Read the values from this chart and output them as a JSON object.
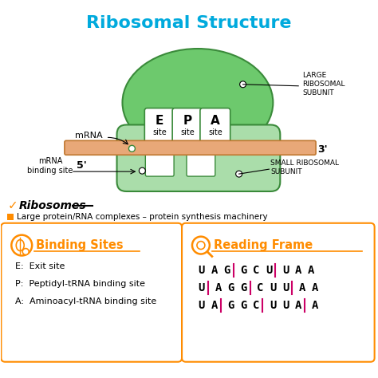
{
  "title": "Ribosomal Structure",
  "title_color": "#00AADD",
  "title_fontsize": 16,
  "bg_color": "#FFFFFF",
  "large_subunit_color": "#6DC96D",
  "large_subunit_border": "#3A8A3A",
  "small_subunit_color": "#AADDAA",
  "small_subunit_border": "#3A8A3A",
  "mrna_color": "#E8A878",
  "mrna_border": "#C07830",
  "site_border": "#3A8A3A",
  "site_labels": [
    "E",
    "P",
    "A"
  ],
  "orange_color": "#FF8C00",
  "pink_color": "#CC0066",
  "ribosomes_desc": "Large protein/RNA complexes – protein synthesis machinery",
  "binding_title": "Binding Sites",
  "binding_items": [
    "E:  Exit site",
    "P:  Peptidyl-tRNA binding site",
    "A:  Aminoacyl-tRNA binding site"
  ],
  "reading_title": "Reading Frame"
}
